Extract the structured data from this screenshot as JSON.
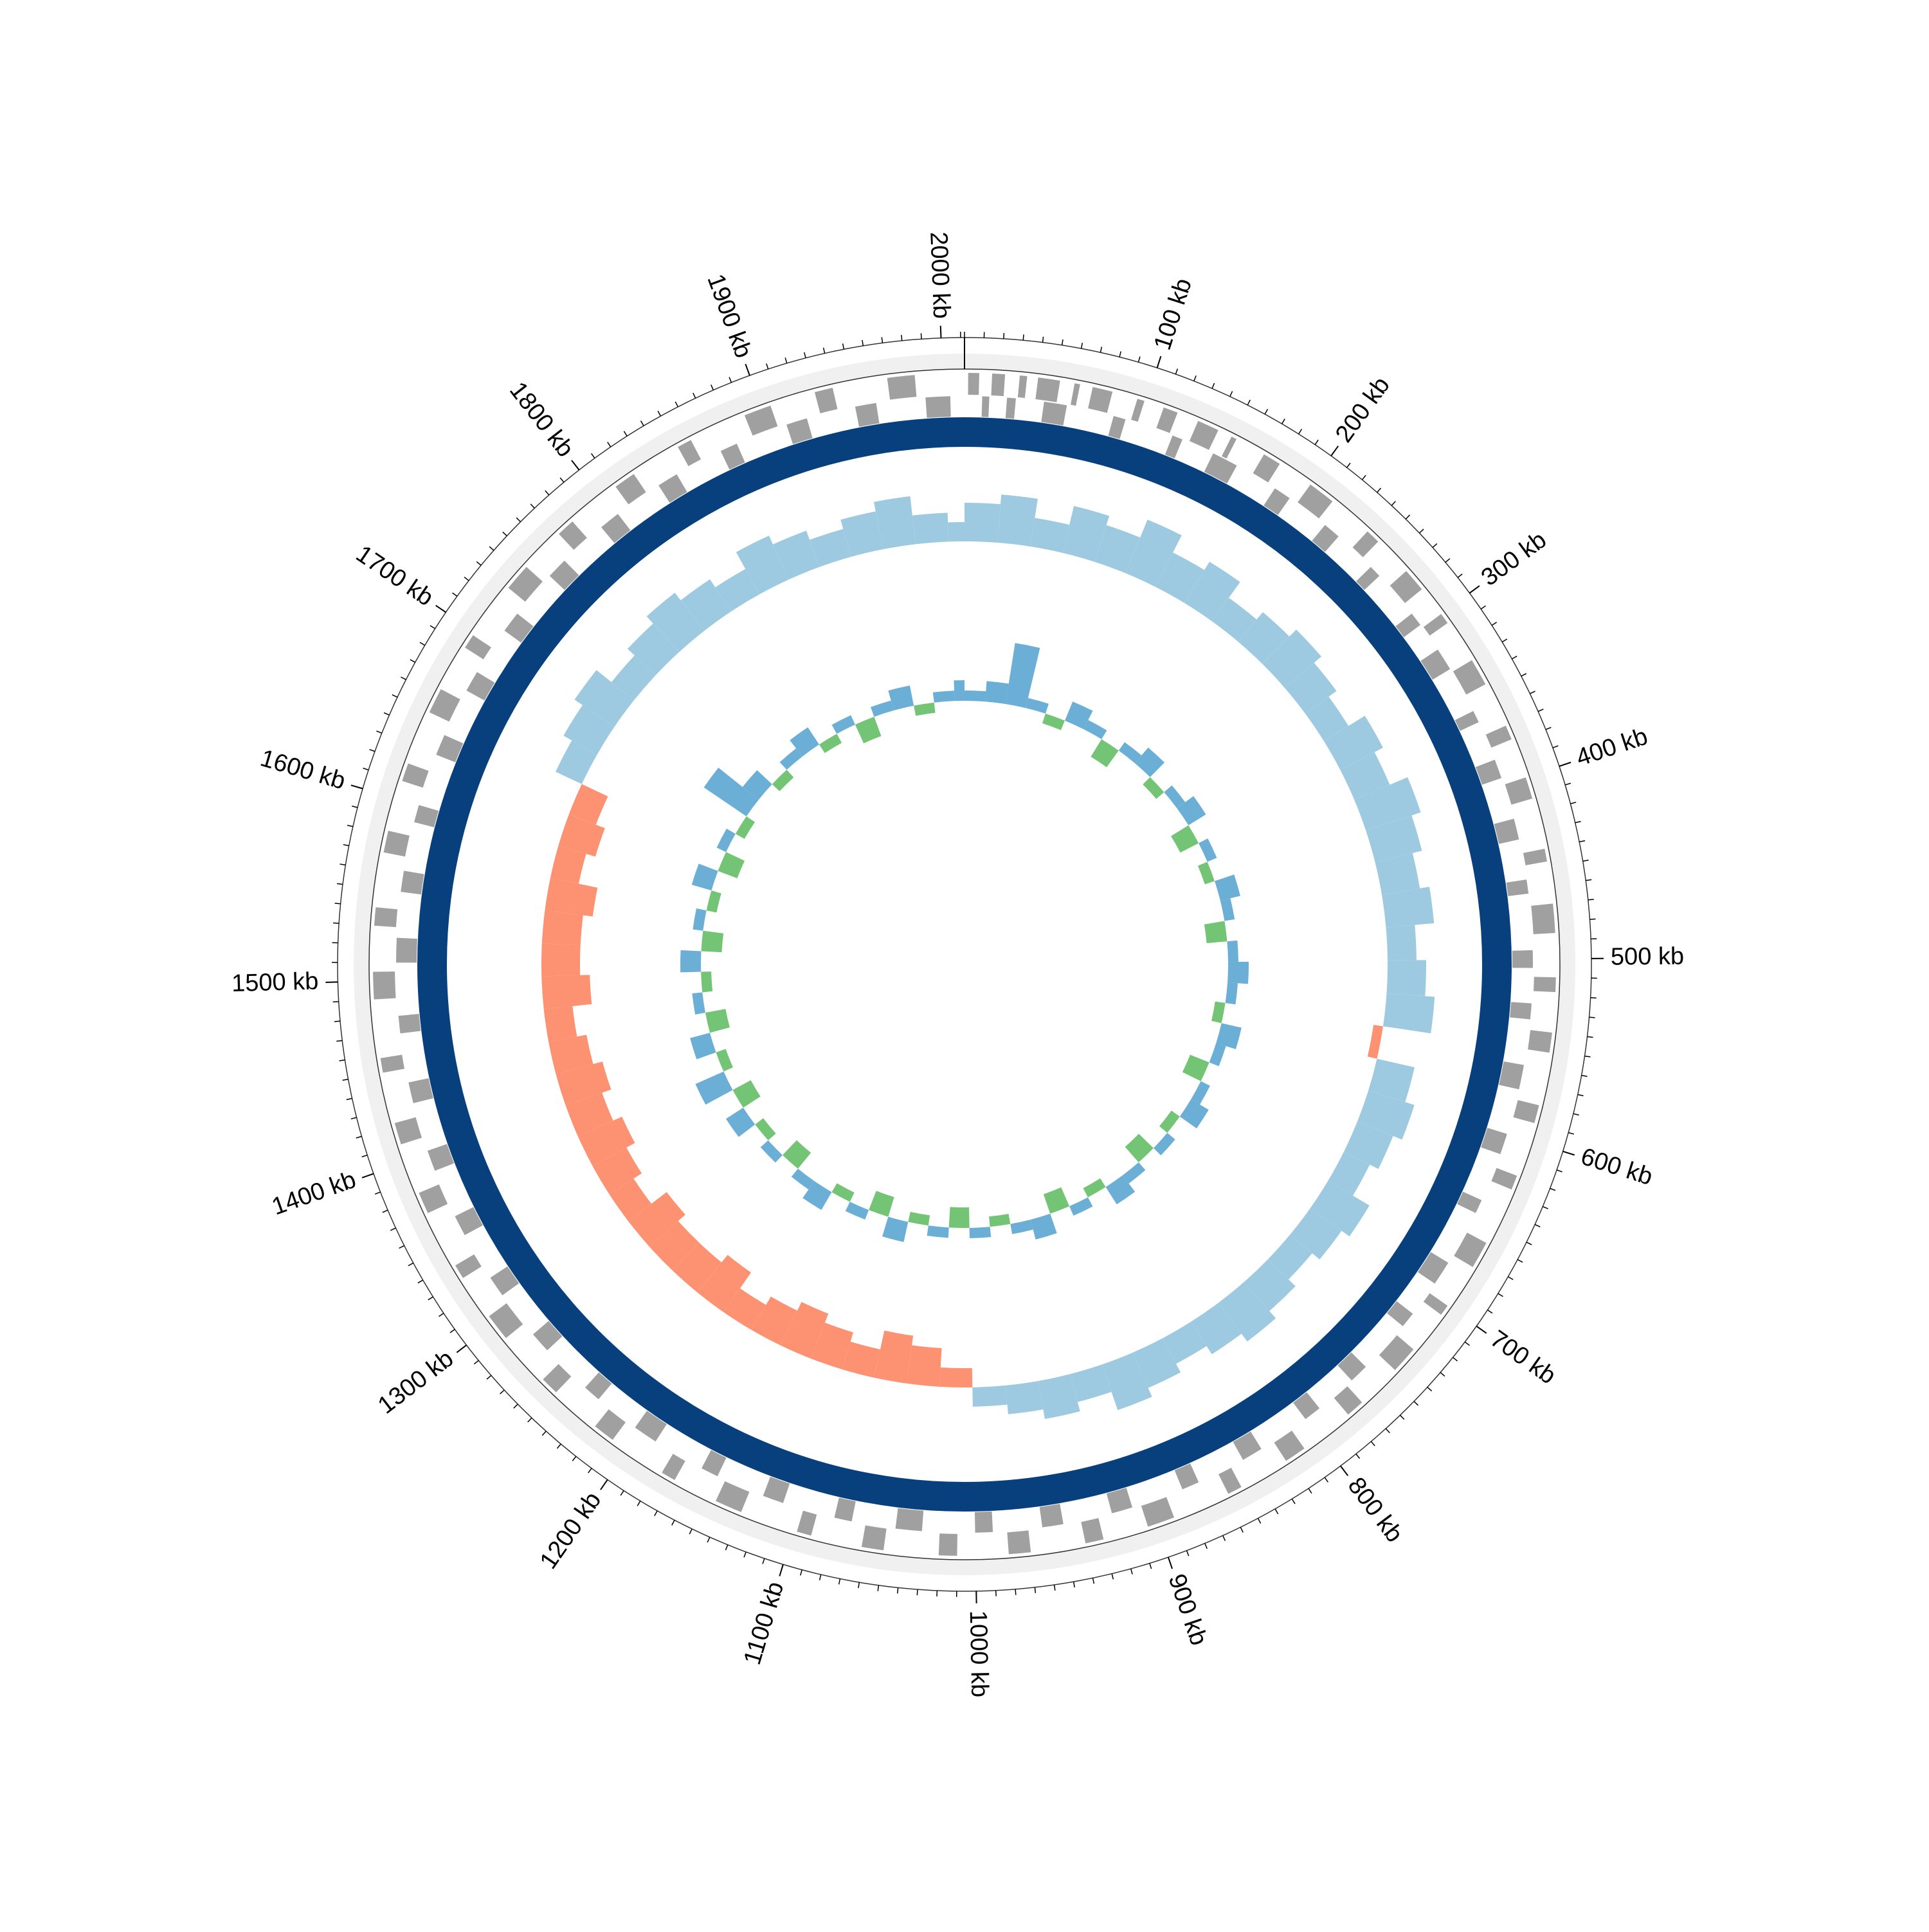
{
  "chart_data": {
    "type": "circular_genome",
    "xlim": [
      0,
      2012
    ],
    "xticks": [
      {
        "value": 100,
        "label": "100 kb"
      },
      {
        "value": 200,
        "label": "200 kb"
      },
      {
        "value": 300,
        "label": "300 kb"
      },
      {
        "value": 400,
        "label": "400 kb"
      },
      {
        "value": 500,
        "label": "500 kb"
      },
      {
        "value": 600,
        "label": "600 kb"
      },
      {
        "value": 700,
        "label": "700 kb"
      },
      {
        "value": 800,
        "label": "800 kb"
      },
      {
        "value": 900,
        "label": "900 kb"
      },
      {
        "value": 1000,
        "label": "1000 kb"
      },
      {
        "value": 1100,
        "label": "1100 kb"
      },
      {
        "value": 1200,
        "label": "1200 kb"
      },
      {
        "value": 1300,
        "label": "1300 kb"
      },
      {
        "value": 1400,
        "label": "1400 kb"
      },
      {
        "value": 1500,
        "label": "1500 kb"
      },
      {
        "value": 1600,
        "label": "1600 kb"
      },
      {
        "value": 1700,
        "label": "1700 kb"
      },
      {
        "value": 1800,
        "label": "1800 kb"
      },
      {
        "value": 1900,
        "label": "1900 kb"
      },
      {
        "value": 2000,
        "label": "2000 kb"
      }
    ],
    "minor_tick_step": 10,
    "genes": {
      "color": "#a0a0a0",
      "forward": [
        [
          2,
          8
        ],
        [
          15,
          22
        ],
        [
          30,
          34
        ],
        [
          40,
          52
        ],
        [
          60,
          63
        ],
        [
          70,
          81
        ],
        [
          95,
          99
        ],
        [
          110,
          118
        ],
        [
          130,
          142
        ],
        [
          150,
          153
        ],
        [
          170,
          180
        ],
        [
          200,
          215
        ],
        [
          240,
          248
        ],
        [
          270,
          283
        ],
        [
          300,
          306
        ],
        [
          330,
          345
        ],
        [
          370,
          378
        ],
        [
          400,
          412
        ],
        [
          440,
          447
        ],
        [
          470,
          486
        ],
        [
          510,
          518
        ],
        [
          540,
          551
        ],
        [
          580,
          590
        ],
        [
          620,
          628
        ],
        [
          660,
          675
        ],
        [
          700,
          706
        ],
        [
          730,
          745
        ],
        [
          770,
          780
        ],
        [
          810,
          822
        ],
        [
          850,
          858
        ],
        [
          890,
          905
        ],
        [
          930,
          940
        ],
        [
          970,
          982
        ],
        [
          1010,
          1020
        ],
        [
          1050,
          1062
        ],
        [
          1090,
          1098
        ],
        [
          1130,
          1145
        ],
        [
          1170,
          1178
        ],
        [
          1210,
          1222
        ],
        [
          1250,
          1260
        ],
        [
          1290,
          1305
        ],
        [
          1330,
          1338
        ],
        [
          1370,
          1382
        ],
        [
          1410,
          1422
        ],
        [
          1450,
          1458
        ],
        [
          1490,
          1505
        ],
        [
          1530,
          1540
        ],
        [
          1570,
          1582
        ],
        [
          1610,
          1620
        ],
        [
          1650,
          1664
        ],
        [
          1690,
          1698
        ],
        [
          1730,
          1745
        ],
        [
          1770,
          1780
        ],
        [
          1810,
          1822
        ],
        [
          1850,
          1858
        ],
        [
          1890,
          1905
        ],
        [
          1930,
          1940
        ],
        [
          1970,
          1985
        ]
      ],
      "reverse": [
        [
          10,
          14
        ],
        [
          24,
          29
        ],
        [
          45,
          58
        ],
        [
          85,
          92
        ],
        [
          120,
          126
        ],
        [
          145,
          160
        ],
        [
          185,
          195
        ],
        [
          220,
          230
        ],
        [
          255,
          262
        ],
        [
          290,
          298
        ],
        [
          315,
          328
        ],
        [
          355,
          362
        ],
        [
          385,
          396
        ],
        [
          420,
          432
        ],
        [
          455,
          463
        ],
        [
          495,
          505
        ],
        [
          525,
          534
        ],
        [
          560,
          574
        ],
        [
          600,
          612
        ],
        [
          640,
          648
        ],
        [
          680,
          694
        ],
        [
          715,
          724
        ],
        [
          755,
          766
        ],
        [
          790,
          800
        ],
        [
          830,
          842
        ],
        [
          870,
          880
        ],
        [
          910,
          922
        ],
        [
          950,
          962
        ],
        [
          990,
          1000
        ],
        [
          1030,
          1045
        ],
        [
          1070,
          1080
        ],
        [
          1110,
          1122
        ],
        [
          1150,
          1160
        ],
        [
          1190,
          1204
        ],
        [
          1230,
          1240
        ],
        [
          1270,
          1282
        ],
        [
          1310,
          1322
        ],
        [
          1350,
          1362
        ],
        [
          1390,
          1402
        ],
        [
          1430,
          1442
        ],
        [
          1470,
          1480
        ],
        [
          1510,
          1524
        ],
        [
          1550,
          1562
        ],
        [
          1590,
          1600
        ],
        [
          1630,
          1642
        ],
        [
          1670,
          1682
        ],
        [
          1710,
          1722
        ],
        [
          1750,
          1762
        ],
        [
          1790,
          1802
        ],
        [
          1830,
          1842
        ],
        [
          1870,
          1880
        ],
        [
          1910,
          1922
        ],
        [
          1950,
          1962
        ],
        [
          1990,
          2004
        ]
      ]
    },
    "cds_ring_color": "#08407e",
    "gc_skew": {
      "bin_size": 25,
      "lim": [
        -0.08,
        0.08
      ],
      "positive_color": "#9ecae1",
      "negative_color": "#fc9272",
      "values": [
        0.04,
        0.05,
        0.03,
        0.05,
        0.04,
        0.06,
        0.04,
        0.05,
        0.03,
        0.04,
        0.05,
        0.04,
        0.03,
        0.05,
        0.04,
        0.06,
        0.05,
        0.04,
        0.05,
        0.03,
        0.04,
        0.05,
        -0.01,
        0.04,
        0.05,
        0.04,
        0.03,
        0.05,
        0.04,
        0.03,
        0.04,
        0.05,
        0.04,
        0.03,
        0.04,
        0.05,
        0.03,
        0.04,
        0.03,
        0.02,
        -0.02,
        -0.04,
        -0.05,
        -0.03,
        -0.04,
        -0.05,
        -0.04,
        -0.03,
        -0.05,
        -0.04,
        -0.04,
        -0.05,
        -0.03,
        -0.04,
        -0.05,
        -0.04,
        -0.05,
        -0.04,
        -0.03,
        -0.05,
        -0.04,
        -0.04,
        -0.05,
        -0.03,
        -0.04,
        -0.03,
        0.03,
        0.04,
        0.05,
        0.03,
        0.04,
        0.05,
        0.04,
        0.03,
        0.05,
        0.04,
        0.03,
        0.04,
        0.05,
        0.03,
        0.02
      ]
    },
    "gc_content": {
      "bin_size": 25,
      "lim": [
        -10,
        10
      ],
      "positive_color": "#6baed6",
      "negative_color": "#74c476",
      "values": [
        1,
        2,
        6,
        1,
        -1,
        2,
        1,
        -2,
        1,
        2,
        -1,
        1,
        2,
        -2,
        1,
        -1,
        2,
        1,
        -2,
        1,
        2,
        1,
        -1,
        2,
        1,
        -2,
        1,
        2,
        -1,
        1,
        -2,
        1,
        2,
        -1,
        1,
        -2,
        2,
        1,
        -1,
        1,
        -2,
        1,
        -1,
        2,
        -2,
        1,
        -1,
        2,
        1,
        -2,
        1,
        -1,
        2,
        -2,
        3,
        -1,
        2,
        -2,
        1,
        -1,
        2,
        -2,
        1,
        -1,
        2,
        -2,
        1,
        -1,
        5,
        2,
        -1,
        1,
        2,
        -1,
        1,
        -2,
        1,
        2,
        -1,
        1,
        2
      ]
    }
  }
}
